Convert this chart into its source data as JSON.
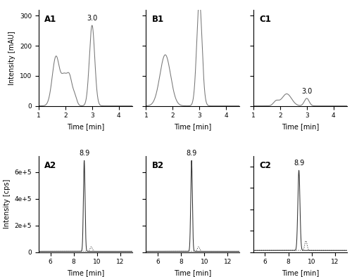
{
  "background_color": "#ffffff",
  "panel_labels": [
    "A1",
    "B1",
    "C1",
    "A2",
    "B2",
    "C2"
  ],
  "hplc_xlim": [
    1,
    4.5
  ],
  "hplc_xticks": [
    1,
    2,
    3,
    4
  ],
  "lcms_xlim": [
    5,
    13
  ],
  "lcms_xticks": [
    6,
    8,
    10,
    12
  ],
  "hplc_ylim_shared": [
    0,
    320
  ],
  "hplc_yticks_shared": [
    0,
    100,
    200,
    300
  ],
  "lcms_ylim_AB": [
    0,
    720000
  ],
  "lcms_ylim_C": [
    0,
    90000
  ],
  "lcms_yticks_AB": [
    0,
    200000,
    400000,
    600000
  ],
  "lcms_yticklabels_AB": [
    "0",
    "2e+5",
    "4e+5",
    "6e+5"
  ],
  "lcms_yticks_C": [
    0,
    20000,
    40000,
    60000,
    80000
  ],
  "xlabel": "Time [min]",
  "ylabel_top": "Intensity [mAU]",
  "ylabel_bot": "Intensity [cps]",
  "peak_label_hplc": "3.0",
  "peak_label_lcms": "8.9",
  "line_color_hplc": "#777777",
  "line_color_solid": "#333333",
  "line_color_dotted": "#333333"
}
